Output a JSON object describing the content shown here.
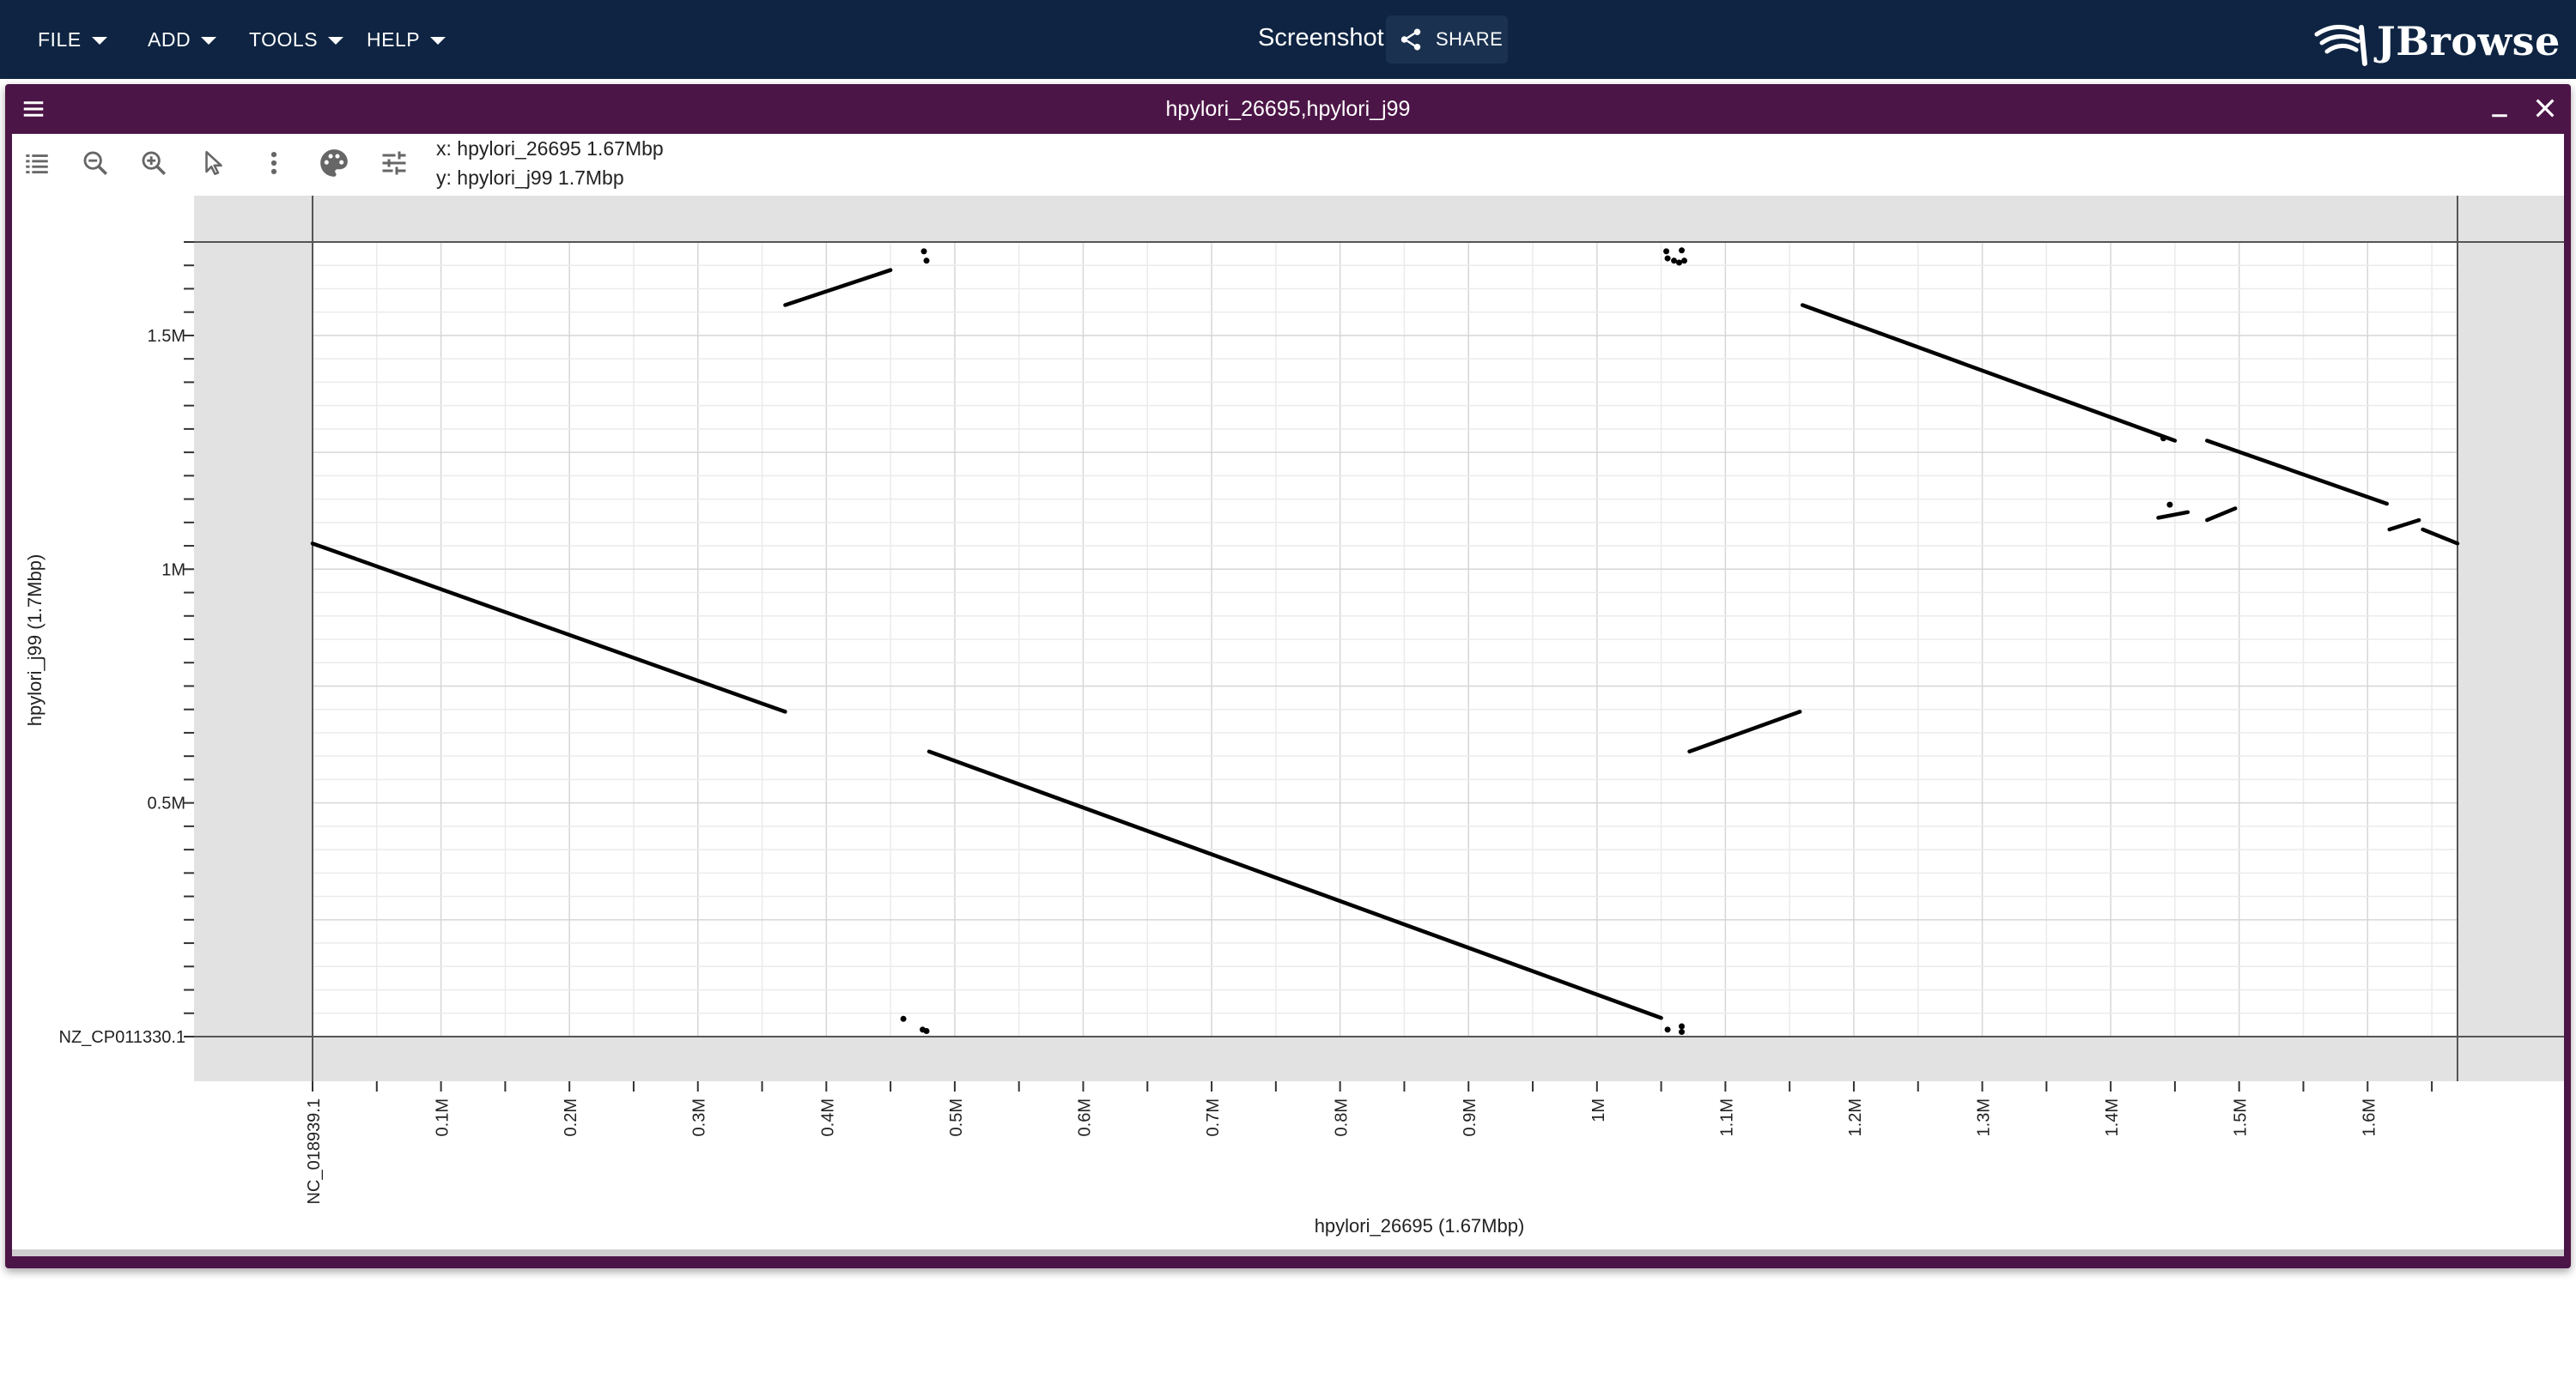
{
  "app_menu": {
    "file": "FILE",
    "add": "ADD",
    "tools": "TOOLS",
    "help": "HELP"
  },
  "session": {
    "title": "Screenshot",
    "share_label": "SHARE"
  },
  "brand": {
    "name": "JBrowse",
    "appbar_color": "#0e2442",
    "view_header_color": "#4c1547"
  },
  "view": {
    "title": "hpylori_26695,hpylori_j99",
    "coord_x": "x: hpylori_26695 1.67Mbp",
    "coord_y": "y: hpylori_j99 1.7Mbp",
    "toolbar_icons": [
      "list-icon",
      "zoom-out-icon",
      "zoom-in-icon",
      "cursor-icon",
      "more-vert-icon",
      "palette-icon",
      "tune-icon"
    ]
  },
  "chart_data": {
    "type": "scatter",
    "title": "",
    "xlabel": "hpylori_26695 (1.67Mbp)",
    "ylabel": "hpylori_j99 (1.7Mbp)",
    "x_ref_label": "NC_018939.1",
    "y_ref_label": "NZ_CP011330.1",
    "xlim": [
      0,
      1670000
    ],
    "ylim": [
      0,
      1700000
    ],
    "x_ticks": [
      {
        "value": 0,
        "label": "NC_018939.1"
      },
      {
        "value": 100000,
        "label": "0.1M"
      },
      {
        "value": 200000,
        "label": "0.2M"
      },
      {
        "value": 300000,
        "label": "0.3M"
      },
      {
        "value": 400000,
        "label": "0.4M"
      },
      {
        "value": 500000,
        "label": "0.5M"
      },
      {
        "value": 600000,
        "label": "0.6M"
      },
      {
        "value": 700000,
        "label": "0.7M"
      },
      {
        "value": 800000,
        "label": "0.8M"
      },
      {
        "value": 900000,
        "label": "0.9M"
      },
      {
        "value": 1000000,
        "label": "1M"
      },
      {
        "value": 1100000,
        "label": "1.1M"
      },
      {
        "value": 1200000,
        "label": "1.2M"
      },
      {
        "value": 1300000,
        "label": "1.3M"
      },
      {
        "value": 1400000,
        "label": "1.4M"
      },
      {
        "value": 1500000,
        "label": "1.5M"
      },
      {
        "value": 1600000,
        "label": "1.6M"
      }
    ],
    "y_ticks": [
      {
        "value": 0,
        "label": "NZ_CP011330.1"
      },
      {
        "value": 500000,
        "label": "0.5M"
      },
      {
        "value": 1000000,
        "label": "1M"
      },
      {
        "value": 1500000,
        "label": "1.5M"
      }
    ],
    "grid": true,
    "segments": [
      {
        "x1": 0,
        "y1": 1055000,
        "x2": 368000,
        "y2": 695000
      },
      {
        "x1": 368000,
        "y1": 1565000,
        "x2": 450000,
        "y2": 1640000
      },
      {
        "x1": 480000,
        "y1": 610000,
        "x2": 1050000,
        "y2": 40000
      },
      {
        "x1": 1072000,
        "y1": 610000,
        "x2": 1158000,
        "y2": 695000
      },
      {
        "x1": 1160000,
        "y1": 1565000,
        "x2": 1450000,
        "y2": 1275000
      },
      {
        "x1": 1475000,
        "y1": 1275000,
        "x2": 1615000,
        "y2": 1140000
      },
      {
        "x1": 1437000,
        "y1": 1110000,
        "x2": 1460000,
        "y2": 1122000
      },
      {
        "x1": 1475000,
        "y1": 1105000,
        "x2": 1497000,
        "y2": 1130000
      },
      {
        "x1": 1617000,
        "y1": 1085000,
        "x2": 1640000,
        "y2": 1105000
      },
      {
        "x1": 1643000,
        "y1": 1085000,
        "x2": 1670000,
        "y2": 1055000
      }
    ],
    "points": [
      {
        "x": 476000,
        "y": 1680000
      },
      {
        "x": 478000,
        "y": 1660000
      },
      {
        "x": 1055000,
        "y": 1665000
      },
      {
        "x": 1060000,
        "y": 1660000
      },
      {
        "x": 1064000,
        "y": 1656000
      },
      {
        "x": 1054000,
        "y": 1680000
      },
      {
        "x": 1066000,
        "y": 1682000
      },
      {
        "x": 1068000,
        "y": 1660000
      },
      {
        "x": 460000,
        "y": 38000
      },
      {
        "x": 475000,
        "y": 15000
      },
      {
        "x": 478000,
        "y": 12000
      },
      {
        "x": 1055000,
        "y": 15000
      },
      {
        "x": 1066000,
        "y": 10000
      },
      {
        "x": 1066000,
        "y": 22000
      },
      {
        "x": 1441000,
        "y": 1280000
      },
      {
        "x": 1446000,
        "y": 1138000
      }
    ]
  }
}
